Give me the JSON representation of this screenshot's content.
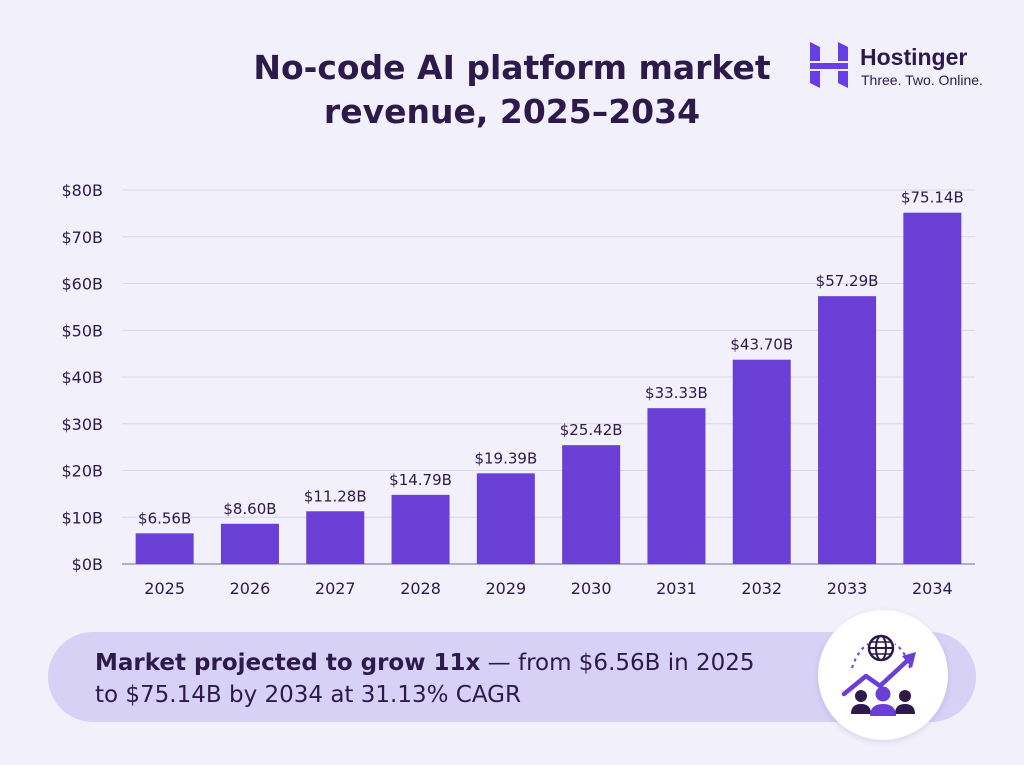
{
  "title_line1": "No-code AI platform market",
  "title_line2": "revenue, 2025–2034",
  "brand": {
    "name": "Hostinger",
    "tagline": "Three. Two. Online."
  },
  "banner": {
    "bold": "Market projected to grow 11x",
    "rest_line1": " — from $6.56B in 2025",
    "line2": "to $75.14B by 2034 at 31.13% CAGR",
    "icon": "growth-network-icon"
  },
  "colors": {
    "bar": "#6a3fd6",
    "text": "#2d1a4a",
    "grid": "#d9d6ee",
    "banner": "#d7d1f5"
  },
  "chart_data": {
    "type": "bar",
    "categories": [
      "2025",
      "2026",
      "2027",
      "2028",
      "2029",
      "2030",
      "2031",
      "2032",
      "2033",
      "2034"
    ],
    "values": [
      6.56,
      8.6,
      11.28,
      14.79,
      19.39,
      25.42,
      33.33,
      43.7,
      57.29,
      75.14
    ],
    "data_labels": [
      "$6.56B",
      "$8.60B",
      "$11.28B",
      "$14.79B",
      "$19.39B",
      "$25.42B",
      "$33.33B",
      "$43.70B",
      "$57.29B",
      "$75.14B"
    ],
    "y_ticks": [
      0,
      10,
      20,
      30,
      40,
      50,
      60,
      70,
      80
    ],
    "y_tick_labels": [
      "$0B",
      "$10B",
      "$20B",
      "$30B",
      "$40B",
      "$50B",
      "$60B",
      "$70B",
      "$80B"
    ],
    "ylim": [
      0,
      80
    ],
    "grid": true,
    "legend": "none"
  }
}
